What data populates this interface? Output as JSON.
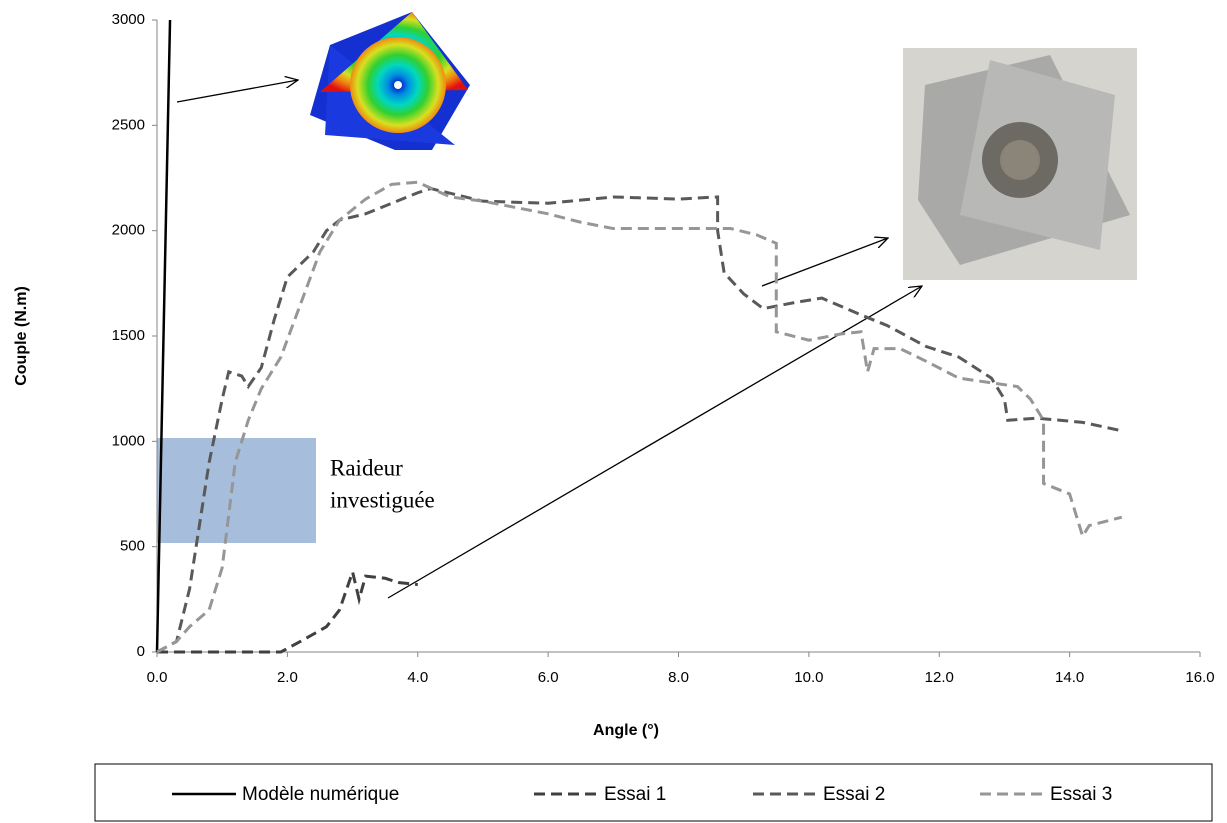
{
  "chart_data": {
    "type": "line",
    "x_label": "Angle (°)",
    "y_label": "Couple (N.m)",
    "annotation_lines": [
      "Raideur",
      "investiguée"
    ],
    "xlim": [
      0,
      16
    ],
    "ylim": [
      0,
      3000
    ],
    "xticks": [
      {
        "value": 0,
        "label": "0.0"
      },
      {
        "value": 2,
        "label": "2.0"
      },
      {
        "value": 4,
        "label": "4.0"
      },
      {
        "value": 6,
        "label": "6.0"
      },
      {
        "value": 8,
        "label": "8.0"
      },
      {
        "value": 10,
        "label": "10.0"
      },
      {
        "value": 12,
        "label": "12.0"
      },
      {
        "value": 14,
        "label": "14.0"
      },
      {
        "value": 16,
        "label": "16.0"
      }
    ],
    "yticks": [
      0,
      500,
      1000,
      1500,
      2000,
      2500,
      3000
    ],
    "grid": false,
    "series": [
      {
        "name": "Modèle numérique",
        "color": "#000000",
        "dash": "solid",
        "x": [
          0,
          0.2
        ],
        "values": [
          0,
          3000
        ]
      },
      {
        "name": "Essai 1",
        "color": "#404040",
        "dash": "dashed",
        "x": [
          0,
          1.9,
          2.2,
          2.6,
          2.8,
          3.0,
          3.1,
          3.2,
          3.5,
          3.7,
          4.0
        ],
        "values": [
          0,
          0,
          50,
          120,
          200,
          380,
          250,
          360,
          350,
          330,
          320
        ]
      },
      {
        "name": "Essai 2",
        "color": "#595959",
        "dash": "dashed",
        "x": [
          0,
          0.3,
          0.5,
          0.8,
          1.0,
          1.1,
          1.3,
          1.4,
          1.6,
          1.8,
          2.0,
          2.4,
          2.6,
          2.8,
          3.2,
          3.6,
          4.0,
          4.2,
          5,
          6,
          7,
          8,
          8.6,
          8.6,
          8.7,
          9,
          9.3,
          9.8,
          10.2,
          10.8,
          11.2,
          11.8,
          12.3,
          12.8,
          13,
          13.05,
          13.5,
          14.2,
          14.8
        ],
        "values": [
          0,
          50,
          300,
          900,
          1200,
          1330,
          1310,
          1260,
          1350,
          1580,
          1780,
          1900,
          2000,
          2050,
          2080,
          2130,
          2180,
          2200,
          2140,
          2130,
          2160,
          2150,
          2160,
          2000,
          1800,
          1700,
          1630,
          1660,
          1680,
          1600,
          1550,
          1450,
          1400,
          1300,
          1200,
          1100,
          1110,
          1090,
          1050
        ]
      },
      {
        "name": "Essai 3",
        "color": "#969696",
        "dash": "dashed",
        "x": [
          0,
          0.3,
          0.5,
          0.8,
          1.0,
          1.2,
          1.4,
          1.6,
          1.9,
          2.2,
          2.5,
          2.8,
          3.2,
          3.6,
          4.0,
          4.5,
          5.0,
          6.0,
          6.5,
          7,
          8,
          8.8,
          9.2,
          9.5,
          9.5,
          10,
          10.5,
          10.8,
          10.9,
          11.0,
          11.4,
          11.8,
          12.3,
          13.2,
          13.4,
          13.6,
          13.6,
          14.0,
          14.2,
          14.3,
          14.8
        ],
        "values": [
          0,
          50,
          120,
          200,
          400,
          900,
          1100,
          1250,
          1400,
          1650,
          1900,
          2050,
          2150,
          2220,
          2230,
          2160,
          2140,
          2080,
          2040,
          2010,
          2010,
          2010,
          1980,
          1940,
          1520,
          1480,
          1510,
          1520,
          1330,
          1440,
          1440,
          1380,
          1300,
          1260,
          1200,
          1100,
          800,
          750,
          550,
          600,
          640
        ]
      }
    ]
  }
}
